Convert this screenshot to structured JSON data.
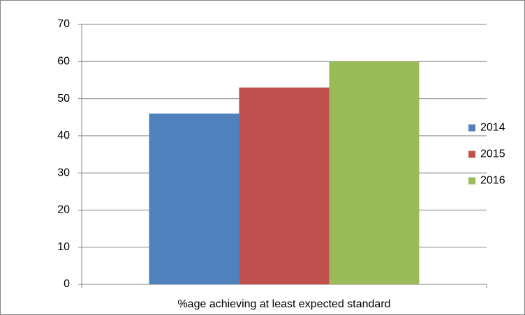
{
  "chart_data": {
    "type": "bar",
    "categories": [
      "%age achieving at least expected standard"
    ],
    "series": [
      {
        "name": "2014",
        "color": "#4f81bd",
        "values": [
          46
        ]
      },
      {
        "name": "2015",
        "color": "#c0504d",
        "values": [
          53
        ]
      },
      {
        "name": "2016",
        "color": "#9bbb59",
        "values": [
          60
        ]
      }
    ],
    "ylim": [
      0,
      70
    ],
    "yticks": [
      0,
      10,
      20,
      30,
      40,
      50,
      60,
      70
    ],
    "grid": true,
    "legend": "right"
  }
}
